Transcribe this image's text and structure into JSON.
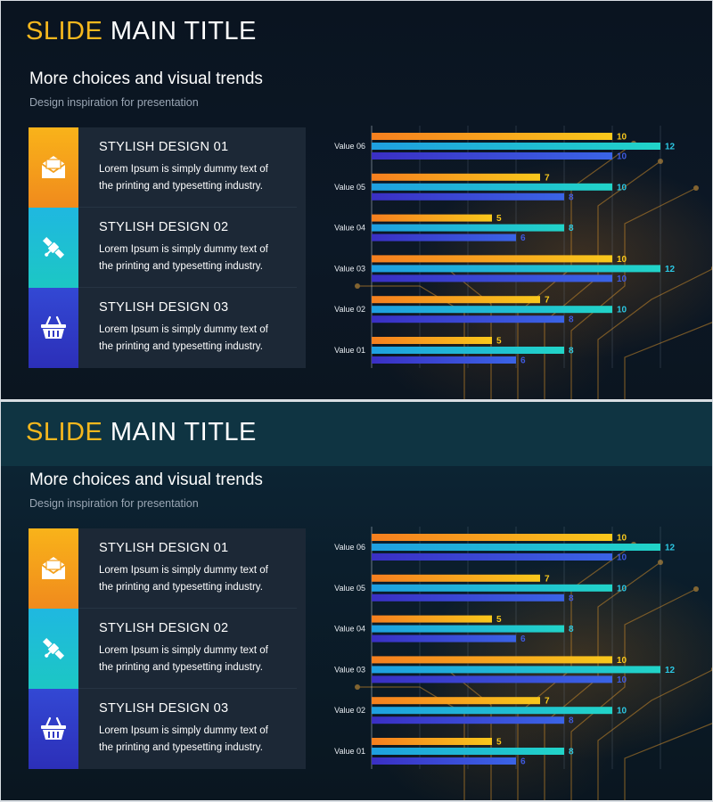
{
  "colors": {
    "accent": "#f6b81e",
    "orange_bar": "#f7a91e",
    "teal_bar": "#1fc4d6",
    "blue_bar": "#3446d6"
  },
  "slides": [
    {
      "title_accent": "SLIDE",
      "title_rest": "MAIN TITLE",
      "subtitle": "More choices and visual trends",
      "subsubtitle": "Design inspiration for presentation",
      "items": [
        {
          "icon": "mail-icon",
          "heading": "STYLISH DESIGN 01",
          "line1": "Lorem Ipsum is simply dummy text of",
          "line2": "the printing and typesetting industry."
        },
        {
          "icon": "satellite-icon",
          "heading": "STYLISH DESIGN 02",
          "line1": "Lorem Ipsum is simply dummy text of",
          "line2": "the printing and typesetting industry."
        },
        {
          "icon": "basket-icon",
          "heading": "STYLISH DESIGN 03",
          "line1": "Lorem Ipsum is simply dummy text of",
          "line2": "the printing and typesetting industry."
        }
      ]
    },
    {
      "title_accent": "SLIDE",
      "title_rest": "MAIN TITLE",
      "subtitle": "More choices and visual trends",
      "subsubtitle": "Design inspiration for presentation",
      "items": [
        {
          "icon": "mail-icon",
          "heading": "STYLISH DESIGN 01",
          "line1": "Lorem Ipsum is simply dummy text of",
          "line2": "the printing and typesetting industry."
        },
        {
          "icon": "satellite-icon",
          "heading": "STYLISH DESIGN 02",
          "line1": "Lorem Ipsum is simply dummy text of",
          "line2": "the printing and typesetting industry."
        },
        {
          "icon": "basket-icon",
          "heading": "STYLISH DESIGN 03",
          "line1": "Lorem Ipsum is simply dummy text of",
          "line2": "the printing and typesetting industry."
        }
      ]
    }
  ],
  "chart_data": [
    {
      "type": "bar",
      "orientation": "horizontal",
      "categories": [
        "Value 06",
        "Value 05",
        "Value 04",
        "Value 03",
        "Value 02",
        "Value 01"
      ],
      "series": [
        {
          "values": [
            10,
            7,
            5,
            10,
            7,
            5
          ]
        },
        {
          "values": [
            12,
            10,
            8,
            12,
            10,
            8
          ]
        },
        {
          "values": [
            10,
            8,
            6,
            10,
            8,
            6
          ]
        }
      ],
      "xlim": [
        0,
        12
      ],
      "grid": true,
      "legend": "none"
    },
    {
      "type": "bar",
      "orientation": "horizontal",
      "categories": [
        "Value 06",
        "Value 05",
        "Value 04",
        "Value 03",
        "Value 02",
        "Value 01"
      ],
      "series": [
        {
          "values": [
            10,
            7,
            5,
            10,
            7,
            5
          ]
        },
        {
          "values": [
            12,
            10,
            8,
            12,
            10,
            8
          ]
        },
        {
          "values": [
            10,
            8,
            6,
            10,
            8,
            6
          ]
        }
      ],
      "xlim": [
        0,
        12
      ],
      "grid": true,
      "legend": "none"
    }
  ]
}
